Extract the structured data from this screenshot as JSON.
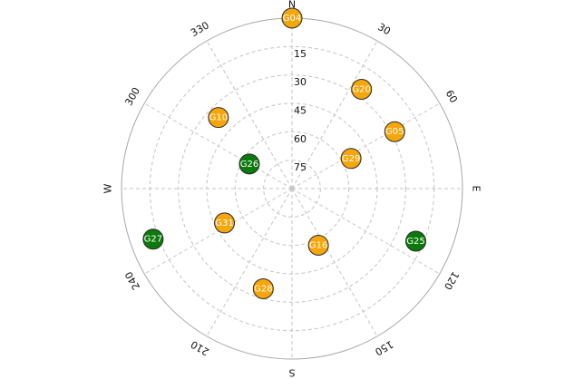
{
  "colors": {
    "healthy": "#0a7a0a",
    "degraded": "#f5a60a",
    "grid": "#c4c4c4"
  },
  "chart_data": {
    "type": "polar-skyplot",
    "elevation_rings": [
      75,
      60,
      45,
      30,
      15
    ],
    "elevation_labels": [
      "75",
      "60",
      "45",
      "30",
      "15"
    ],
    "azimuth_labels": [
      {
        "az": 0,
        "text": "N"
      },
      {
        "az": 30,
        "text": "30"
      },
      {
        "az": 60,
        "text": "60"
      },
      {
        "az": 90,
        "text": "E"
      },
      {
        "az": 120,
        "text": "120"
      },
      {
        "az": 150,
        "text": "150"
      },
      {
        "az": 180,
        "text": "S"
      },
      {
        "az": 210,
        "text": "210"
      },
      {
        "az": 240,
        "text": "240"
      },
      {
        "az": 270,
        "text": "W"
      },
      {
        "az": 300,
        "text": "300"
      },
      {
        "az": 330,
        "text": "330"
      }
    ],
    "satellites": [
      {
        "id": "G04",
        "az": 0,
        "el": 0,
        "status": "degraded"
      },
      {
        "id": "G20",
        "az": 35,
        "el": 26,
        "status": "degraded"
      },
      {
        "id": "G05",
        "az": 61,
        "el": 28,
        "status": "degraded"
      },
      {
        "id": "G29",
        "az": 63,
        "el": 55,
        "status": "degraded"
      },
      {
        "id": "G25",
        "az": 113,
        "el": 19,
        "status": "healthy"
      },
      {
        "id": "G16",
        "az": 155,
        "el": 57,
        "status": "degraded"
      },
      {
        "id": "G28",
        "az": 196,
        "el": 35,
        "status": "degraded"
      },
      {
        "id": "G31",
        "az": 243,
        "el": 50,
        "status": "degraded"
      },
      {
        "id": "G27",
        "az": 250,
        "el": 12,
        "status": "healthy"
      },
      {
        "id": "G26",
        "az": 300,
        "el": 64,
        "status": "healthy"
      },
      {
        "id": "G10",
        "az": 314,
        "el": 36,
        "status": "degraded"
      }
    ]
  }
}
